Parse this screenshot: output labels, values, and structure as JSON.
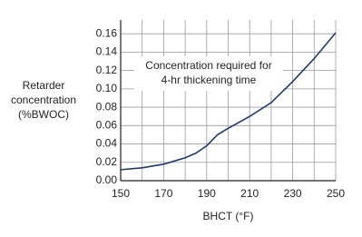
{
  "chart_data": {
    "type": "line",
    "ylabel": [
      "Retarder",
      "concentration",
      "(%BWOC)"
    ],
    "xlabel": "BHCT (°F)",
    "annotation": [
      "Concentration required for",
      "4-hr thickening time"
    ],
    "x": [
      150,
      160,
      170,
      180,
      185,
      190,
      195,
      200,
      210,
      220,
      230,
      240,
      250
    ],
    "series": [
      {
        "color": "#1f3a6e",
        "values": [
          0.012,
          0.014,
          0.018,
          0.025,
          0.03,
          0.038,
          0.05,
          0.057,
          0.07,
          0.085,
          0.108,
          0.133,
          0.161
        ]
      }
    ],
    "xlim": [
      150,
      250
    ],
    "xticks": [
      150,
      170,
      190,
      210,
      230,
      250
    ],
    "ylim": [
      0,
      0.175
    ],
    "yticks": [
      {
        "value": 0,
        "label": "0.00"
      },
      0.02,
      0.04,
      0.06,
      0.08,
      {
        "value": 0.1,
        "label": "0.10"
      },
      0.12,
      0.14,
      0.16
    ],
    "grid": true
  }
}
